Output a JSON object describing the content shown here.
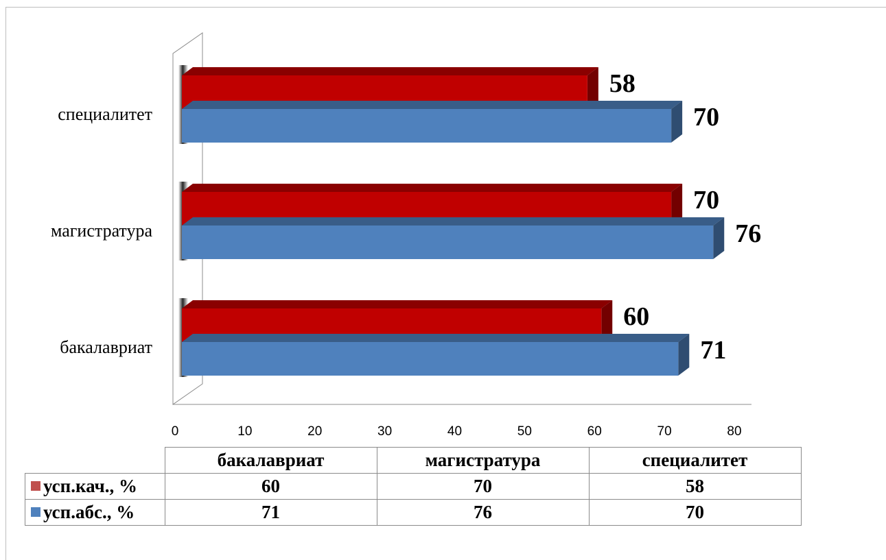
{
  "chart_data": {
    "type": "bar",
    "orientation": "horizontal",
    "categories": [
      "бакалавриат",
      "магистратура",
      "специалитет"
    ],
    "series": [
      {
        "name": "усп.кач., %",
        "values": [
          60,
          70,
          58
        ],
        "color": "#c00000"
      },
      {
        "name": "усп.абс., %",
        "values": [
          71,
          76,
          70
        ],
        "color": "#4f81bd"
      }
    ],
    "x_ticks": [
      "0",
      "10",
      "20",
      "30",
      "40",
      "50",
      "60",
      "70",
      "80"
    ],
    "xlim": [
      0,
      80
    ],
    "grid": false,
    "legend": "data-table-below",
    "data_table": true
  }
}
